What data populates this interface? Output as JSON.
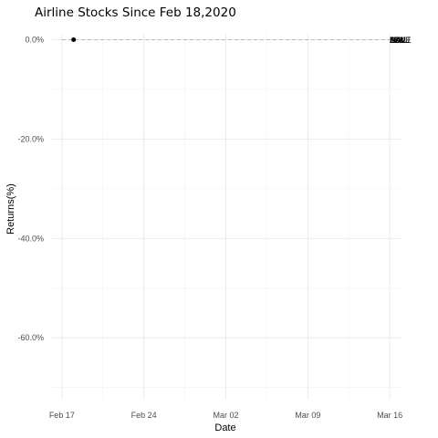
{
  "chart_data": {
    "type": "line",
    "title": "Airline Stocks Since Feb 18,2020",
    "xlabel": "Date",
    "ylabel": "Returns(%)",
    "x_range": [
      "2020-02-16",
      "2020-03-17"
    ],
    "ylim": [
      -0.7245,
      0.012
    ],
    "y_major_ticks": [
      0.0,
      -0.2,
      -0.4,
      -0.6
    ],
    "y_tick_labels": [
      "0.0%",
      "-20.0%",
      "-40.0%",
      "-60.0%"
    ],
    "x_major_ticks": [
      "2020-02-17",
      "2020-02-24",
      "2020-03-02",
      "2020-03-09",
      "2020-03-16"
    ],
    "x_tick_labels": [
      "Feb 17",
      "Feb 24",
      "Mar 02",
      "Mar 09",
      "Mar 16"
    ],
    "grid": true,
    "reference_line": {
      "y": 0.0,
      "style": "dashed"
    },
    "start_point": {
      "x": "2020-02-18",
      "y": 0.0
    },
    "series_end_labels": [
      {
        "label": "AAL",
        "x": "2020-03-16",
        "y": 0.0,
        "color": "#000000"
      },
      {
        "label": "DAL",
        "x": "2020-03-16",
        "y": 0.0,
        "color": "#000000"
      },
      {
        "label": "UAL",
        "x": "2020-03-16",
        "y": 0.0,
        "color": "#000000"
      },
      {
        "label": "LUV",
        "x": "2020-03-16",
        "y": 0.0,
        "color": "#000000"
      },
      {
        "label": "SAVE",
        "x": "2020-03-16",
        "y": 0.0,
        "color": "#000000"
      },
      {
        "label": "ALK",
        "x": "2020-03-16",
        "y": 0.0,
        "color": "#8b1a1a"
      },
      {
        "label": "JBLU",
        "x": "2020-03-16",
        "y": 0.0,
        "color": "#000000"
      }
    ],
    "colors": {
      "background": "#ffffff",
      "grid_major": "#ebebeb",
      "grid_minor": "#f2f2f2",
      "reference_line": "#b3b3b3",
      "point": "#000000"
    }
  }
}
